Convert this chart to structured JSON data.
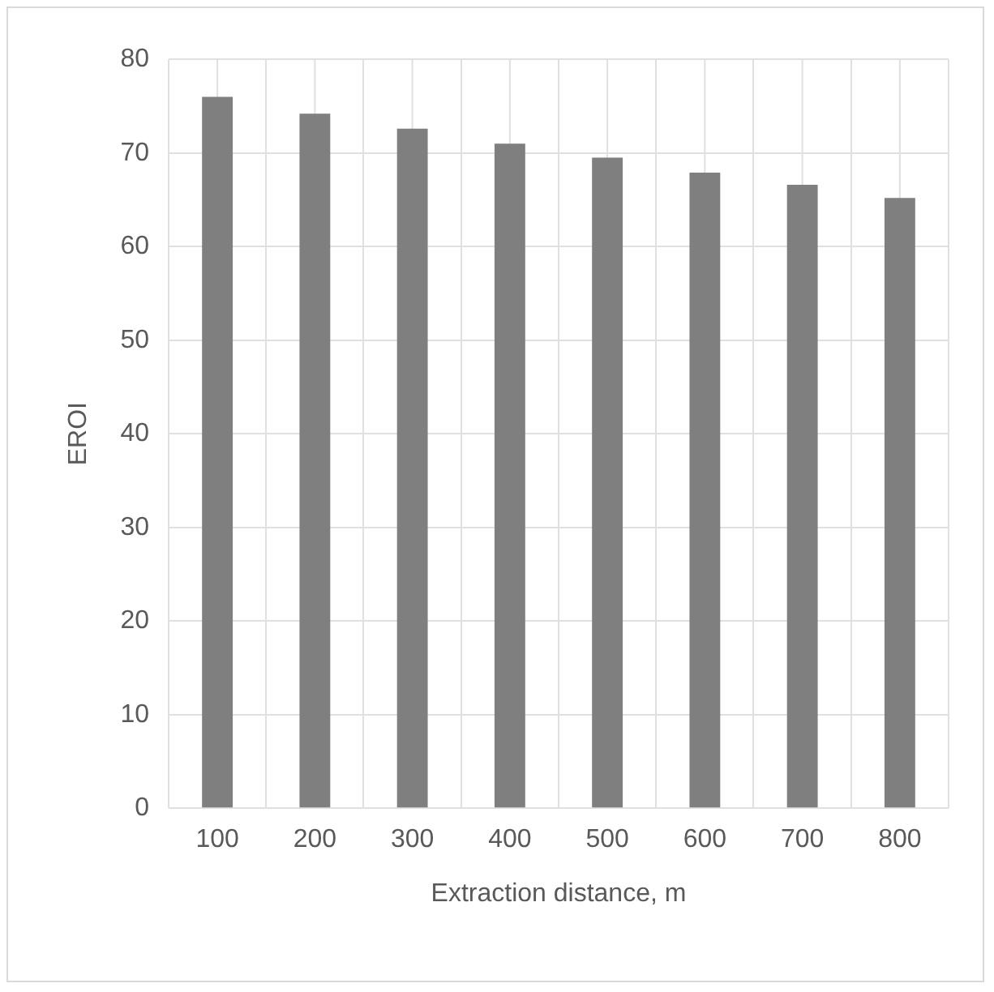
{
  "chart_data": {
    "type": "bar",
    "xlabel": "Extraction distance, m",
    "ylabel": "EROI",
    "categories": [
      "100",
      "200",
      "300",
      "400",
      "500",
      "600",
      "700",
      "800"
    ],
    "values": [
      76.0,
      74.2,
      72.6,
      71.0,
      69.5,
      67.9,
      66.6,
      65.2
    ],
    "color": "#7f7f7f",
    "ylim": [
      0,
      80
    ],
    "yticks": [
      0,
      10,
      20,
      30,
      40,
      50,
      60,
      70,
      80
    ],
    "grid": true,
    "legend": false
  }
}
